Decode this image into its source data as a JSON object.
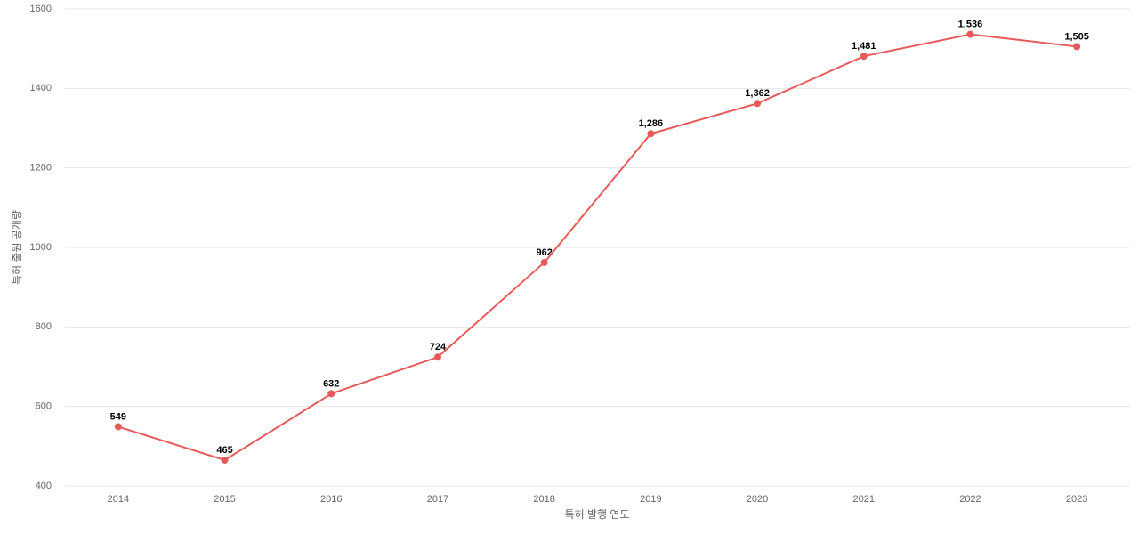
{
  "chart_data": {
    "type": "line",
    "x_label": "특허 발행 연도",
    "y_label": "특허 출원 공개량",
    "categories": [
      "2014",
      "2015",
      "2016",
      "2017",
      "2018",
      "2019",
      "2020",
      "2021",
      "2022",
      "2023"
    ],
    "values": [
      549,
      465,
      632,
      724,
      962,
      1286,
      1362,
      1481,
      1536,
      1505
    ],
    "value_labels": [
      "549",
      "465",
      "632",
      "724",
      "962",
      "1,286",
      "1,362",
      "1,481",
      "1,536",
      "1,505"
    ],
    "color": "#e85a5a",
    "ylim": [
      400,
      1600
    ],
    "yticks": [
      400,
      600,
      800,
      1000,
      1200,
      1400,
      1600
    ],
    "grid": true
  }
}
